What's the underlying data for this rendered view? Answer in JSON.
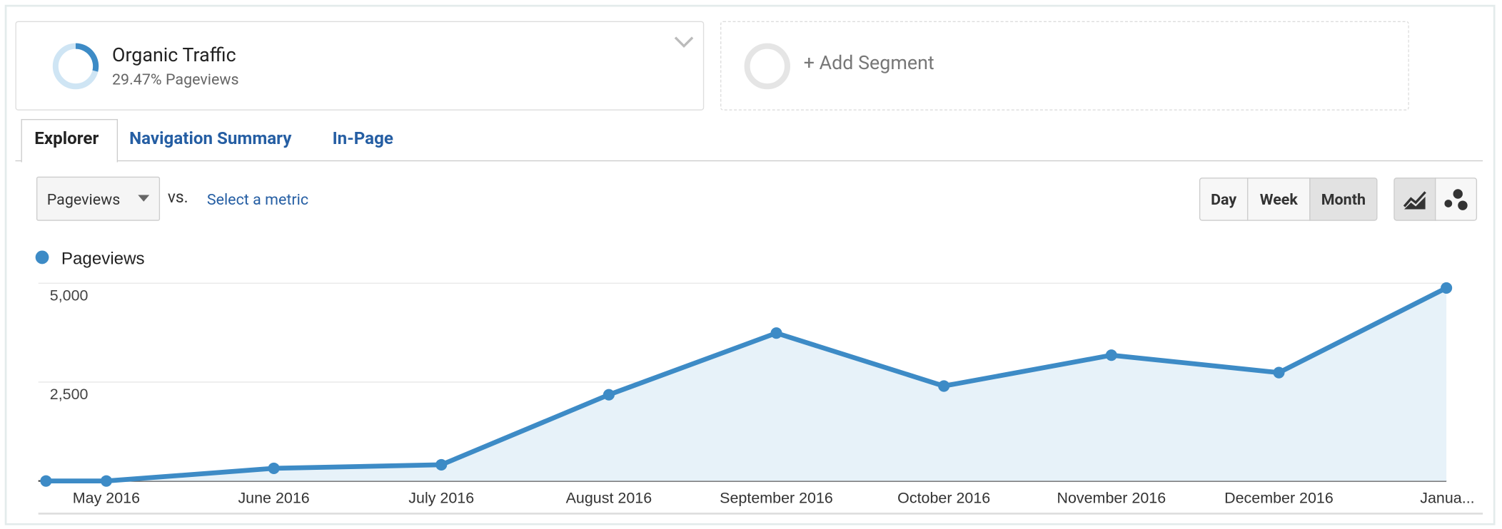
{
  "segment": {
    "title": "Organic Traffic",
    "subtitle": "29.47% Pageviews"
  },
  "add_segment": "+ Add Segment",
  "tabs": [
    "Explorer",
    "Navigation Summary",
    "In-Page"
  ],
  "metric": "Pageviews",
  "vs": "vs.",
  "select_metric": "Select a metric",
  "periods": [
    "Day",
    "Week",
    "Month"
  ],
  "chart_data": {
    "type": "line",
    "categories": [
      null,
      "May 2016",
      "June 2016",
      "July 2016",
      "August 2016",
      "September 2016",
      "October 2016",
      "November 2016",
      "December 2016",
      "Janua..."
    ],
    "series": [
      {
        "name": "Pageviews",
        "color": "#3d8bc6",
        "values": [
          0,
          0,
          320,
          410,
          2180,
          3740,
          2400,
          3180,
          2740,
          4880
        ]
      }
    ],
    "ylim": [
      0,
      5000
    ],
    "yticks": [
      {
        "value": 2500,
        "label": "2,500"
      },
      {
        "value": 5000,
        "label": "5,000"
      }
    ],
    "grid": true,
    "area": true
  }
}
